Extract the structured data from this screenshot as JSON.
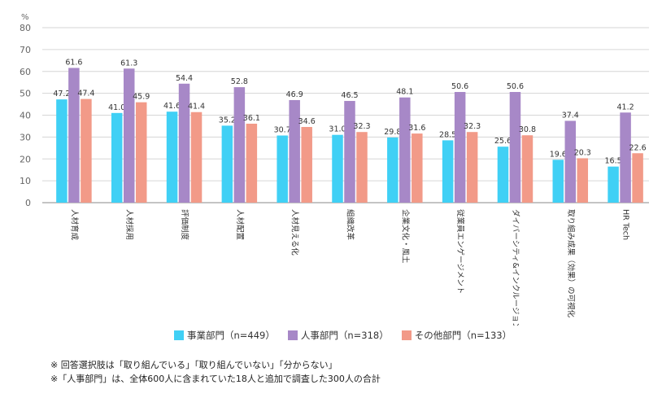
{
  "chart_data": {
    "type": "bar",
    "y_unit": "%",
    "ylim": [
      0,
      80
    ],
    "yticks": [
      0,
      10,
      20,
      30,
      40,
      50,
      60,
      70,
      80
    ],
    "grid": true,
    "categories": [
      "人材育成",
      "人材採用",
      "評価制度",
      "人材配置",
      "人材見える化",
      "組織改革",
      "企業文化・風土",
      "従業員エンゲージメント",
      "ダイバーシティ&インクルージョン",
      "取り組み成果（効果）の可視化",
      "HR Tech"
    ],
    "series": [
      {
        "name": "事業部門（n=449）",
        "color": "#40d0f5",
        "values": [
          47.2,
          41.0,
          41.6,
          35.2,
          30.7,
          31.0,
          29.8,
          28.5,
          25.6,
          19.6,
          16.5
        ]
      },
      {
        "name": "人事部門（n=318）",
        "color": "#a788c7",
        "values": [
          61.6,
          61.3,
          54.4,
          52.8,
          46.9,
          46.5,
          48.1,
          50.6,
          50.6,
          37.4,
          41.2
        ]
      },
      {
        "name": "その他部門（n=133）",
        "color": "#f29a88",
        "values": [
          47.4,
          45.9,
          41.4,
          36.1,
          34.6,
          32.3,
          31.6,
          32.3,
          30.8,
          20.3,
          22.6
        ]
      }
    ],
    "legend_position": "bottom"
  },
  "notes": [
    "※ 回答選択肢は「取り組んでいる」「取り組んでいない」「分からない」",
    "※「人事部門」は、全体600人に含まれていた18人と追加で調査した300人の合計"
  ]
}
